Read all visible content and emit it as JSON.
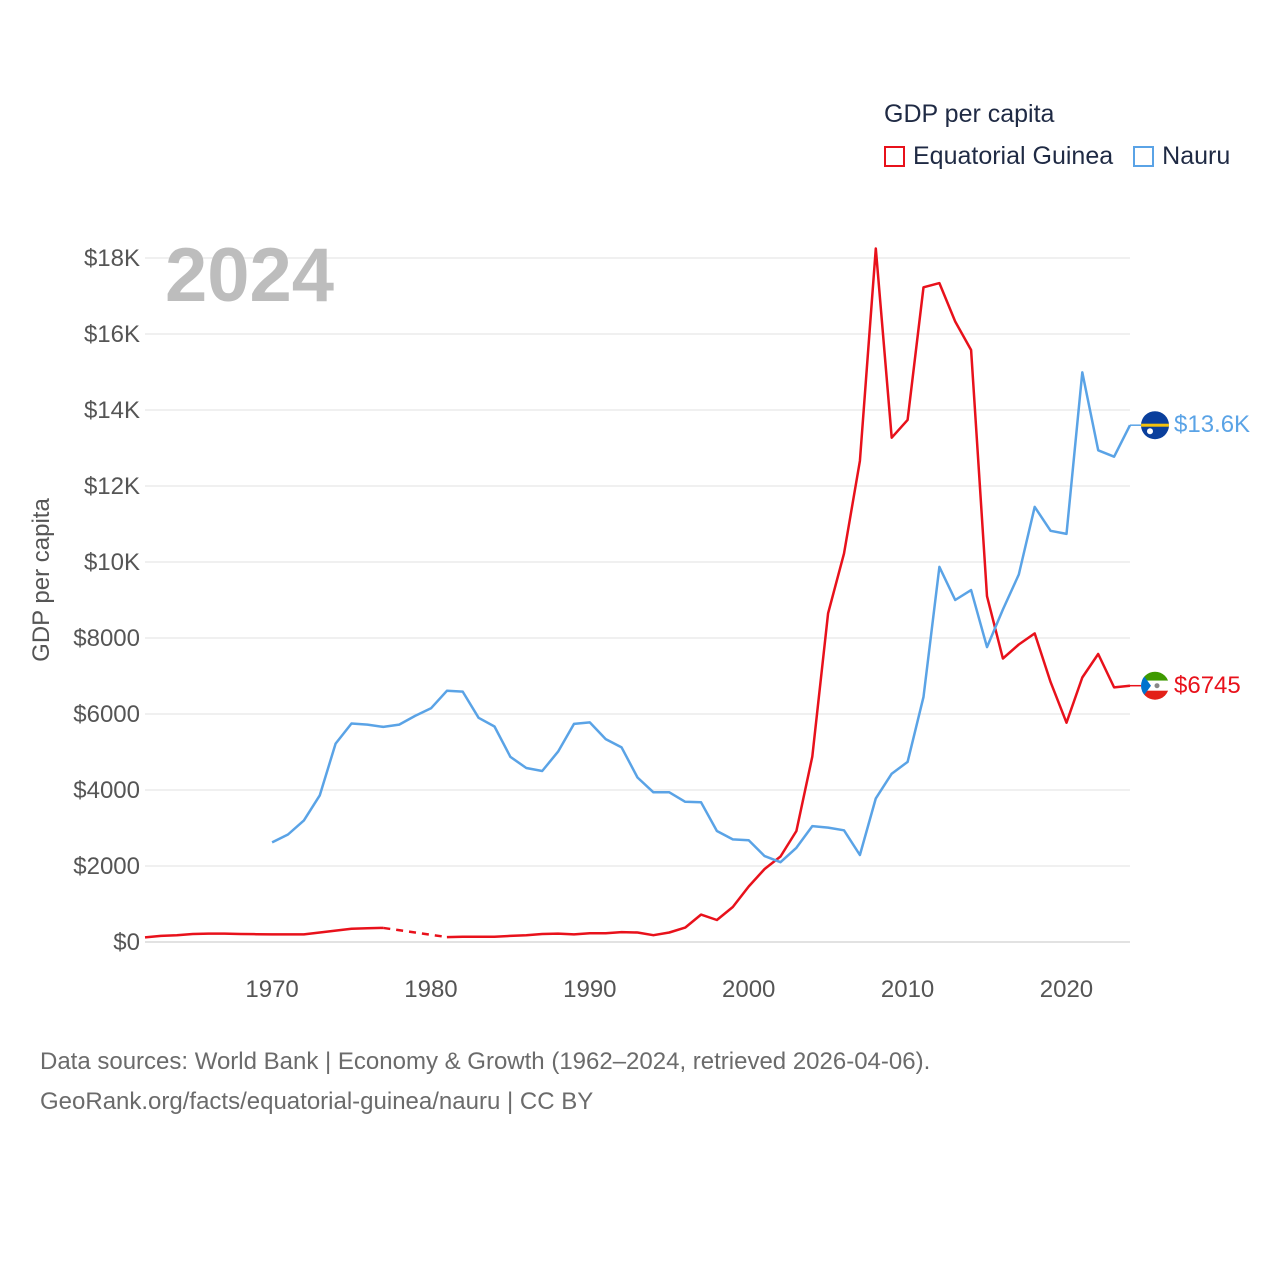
{
  "legend": {
    "title": "GDP per capita",
    "items": [
      {
        "name": "Equatorial Guinea",
        "color": "#e8111b"
      },
      {
        "name": "Nauru",
        "color": "#5aa3e6"
      }
    ]
  },
  "year_label": "2024",
  "footer": {
    "line1": "Data sources: World Bank | Economy & Growth (1962–2024, retrieved 2026-04-06).",
    "line2": "GeoRank.org/facts/equatorial-guinea/nauru | CC BY"
  },
  "end_labels": {
    "equatorial_guinea": "$6745",
    "nauru": "$13.6K"
  },
  "icons": {
    "eq_guinea_flag": "equatorial-guinea-flag-icon",
    "nauru_flag": "nauru-flag-icon"
  },
  "chart_data": {
    "type": "line",
    "title": "GDP per capita",
    "xlabel": "",
    "ylabel": "GDP per capita",
    "xlim": [
      1962,
      2024
    ],
    "ylim": [
      0,
      18000
    ],
    "x_ticks": [
      1970,
      1980,
      1990,
      2000,
      2010,
      2020
    ],
    "y_ticks": [
      0,
      2000,
      4000,
      6000,
      8000,
      10000,
      12000,
      14000,
      16000,
      18000
    ],
    "y_tick_labels": [
      "$0",
      "$2000",
      "$4000",
      "$6000",
      "$8000",
      "$10K",
      "$12K",
      "$14K",
      "$16K",
      "$18K"
    ],
    "series": [
      {
        "name": "Equatorial Guinea",
        "color": "#e8111b",
        "gap_dashed": [
          1977,
          1981
        ],
        "points": [
          [
            1962,
            120
          ],
          [
            1963,
            160
          ],
          [
            1964,
            180
          ],
          [
            1965,
            210
          ],
          [
            1966,
            220
          ],
          [
            1967,
            220
          ],
          [
            1968,
            210
          ],
          [
            1969,
            205
          ],
          [
            1970,
            200
          ],
          [
            1971,
            200
          ],
          [
            1972,
            200
          ],
          [
            1973,
            250
          ],
          [
            1974,
            300
          ],
          [
            1975,
            350
          ],
          [
            1976,
            360
          ],
          [
            1977,
            370
          ],
          [
            1981,
            130
          ],
          [
            1982,
            140
          ],
          [
            1983,
            140
          ],
          [
            1984,
            140
          ],
          [
            1985,
            160
          ],
          [
            1986,
            180
          ],
          [
            1987,
            210
          ],
          [
            1988,
            220
          ],
          [
            1989,
            200
          ],
          [
            1990,
            230
          ],
          [
            1991,
            230
          ],
          [
            1992,
            260
          ],
          [
            1993,
            250
          ],
          [
            1994,
            180
          ],
          [
            1995,
            250
          ],
          [
            1996,
            380
          ],
          [
            1997,
            720
          ],
          [
            1998,
            580
          ],
          [
            1999,
            920
          ],
          [
            2000,
            1460
          ],
          [
            2001,
            1920
          ],
          [
            2002,
            2250
          ],
          [
            2003,
            2920
          ],
          [
            2004,
            4880
          ],
          [
            2005,
            8650
          ],
          [
            2006,
            10220
          ],
          [
            2007,
            12660
          ],
          [
            2008,
            18250
          ],
          [
            2009,
            13270
          ],
          [
            2010,
            13740
          ],
          [
            2011,
            17230
          ],
          [
            2012,
            17340
          ],
          [
            2013,
            16330
          ],
          [
            2014,
            15580
          ],
          [
            2015,
            9100
          ],
          [
            2016,
            7460
          ],
          [
            2017,
            7830
          ],
          [
            2018,
            8120
          ],
          [
            2019,
            6840
          ],
          [
            2020,
            5770
          ],
          [
            2021,
            6960
          ],
          [
            2022,
            7580
          ],
          [
            2023,
            6700
          ],
          [
            2024,
            6745
          ]
        ]
      },
      {
        "name": "Nauru",
        "color": "#5aa3e6",
        "points": [
          [
            1970,
            2620
          ],
          [
            1971,
            2830
          ],
          [
            1972,
            3200
          ],
          [
            1973,
            3860
          ],
          [
            1974,
            5220
          ],
          [
            1975,
            5750
          ],
          [
            1976,
            5720
          ],
          [
            1977,
            5660
          ],
          [
            1978,
            5720
          ],
          [
            1979,
            5950
          ],
          [
            1980,
            6150
          ],
          [
            1981,
            6610
          ],
          [
            1982,
            6590
          ],
          [
            1983,
            5900
          ],
          [
            1984,
            5670
          ],
          [
            1985,
            4870
          ],
          [
            1986,
            4580
          ],
          [
            1987,
            4500
          ],
          [
            1988,
            5010
          ],
          [
            1989,
            5740
          ],
          [
            1990,
            5780
          ],
          [
            1991,
            5340
          ],
          [
            1992,
            5120
          ],
          [
            1993,
            4330
          ],
          [
            1994,
            3940
          ],
          [
            1995,
            3940
          ],
          [
            1996,
            3690
          ],
          [
            1997,
            3680
          ],
          [
            1998,
            2920
          ],
          [
            1999,
            2700
          ],
          [
            2000,
            2680
          ],
          [
            2001,
            2260
          ],
          [
            2002,
            2100
          ],
          [
            2003,
            2480
          ],
          [
            2004,
            3050
          ],
          [
            2005,
            3010
          ],
          [
            2006,
            2940
          ],
          [
            2007,
            2290
          ],
          [
            2008,
            3780
          ],
          [
            2009,
            4430
          ],
          [
            2010,
            4740
          ],
          [
            2011,
            6450
          ],
          [
            2012,
            9870
          ],
          [
            2013,
            9000
          ],
          [
            2014,
            9260
          ],
          [
            2015,
            7760
          ],
          [
            2016,
            8750
          ],
          [
            2017,
            9670
          ],
          [
            2018,
            11450
          ],
          [
            2019,
            10820
          ],
          [
            2020,
            10740
          ],
          [
            2021,
            14990
          ],
          [
            2022,
            12940
          ],
          [
            2023,
            12770
          ],
          [
            2024,
            13600
          ]
        ]
      }
    ]
  }
}
